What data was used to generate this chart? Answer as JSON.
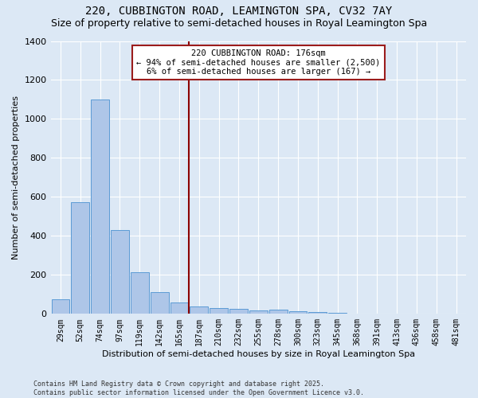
{
  "title1": "220, CUBBINGTON ROAD, LEAMINGTON SPA, CV32 7AY",
  "title2": "Size of property relative to semi-detached houses in Royal Leamington Spa",
  "xlabel": "Distribution of semi-detached houses by size in Royal Leamington Spa",
  "ylabel": "Number of semi-detached properties",
  "footer": "Contains HM Land Registry data © Crown copyright and database right 2025.\nContains public sector information licensed under the Open Government Licence v3.0.",
  "bar_labels": [
    "29sqm",
    "52sqm",
    "74sqm",
    "97sqm",
    "119sqm",
    "142sqm",
    "165sqm",
    "187sqm",
    "210sqm",
    "232sqm",
    "255sqm",
    "278sqm",
    "300sqm",
    "323sqm",
    "345sqm",
    "368sqm",
    "391sqm",
    "413sqm",
    "436sqm",
    "458sqm",
    "481sqm"
  ],
  "bar_values": [
    75,
    575,
    1100,
    430,
    215,
    110,
    58,
    40,
    30,
    25,
    18,
    20,
    15,
    10,
    5,
    2,
    2,
    1,
    1,
    0,
    0
  ],
  "bar_color": "#aec6e8",
  "bar_edgecolor": "#5b9bd5",
  "vline_color": "#8b0000",
  "annotation_text": "220 CUBBINGTON ROAD: 176sqm\n← 94% of semi-detached houses are smaller (2,500)\n6% of semi-detached houses are larger (167) →",
  "annotation_box_color": "#ffffff",
  "annotation_box_edgecolor": "#9b1c1c",
  "ylim": [
    0,
    1400
  ],
  "yticks": [
    0,
    200,
    400,
    600,
    800,
    1000,
    1200,
    1400
  ],
  "background_color": "#dce8f5",
  "plot_background": "#dce8f5",
  "grid_color": "#ffffff",
  "title_fontsize": 10,
  "subtitle_fontsize": 9
}
